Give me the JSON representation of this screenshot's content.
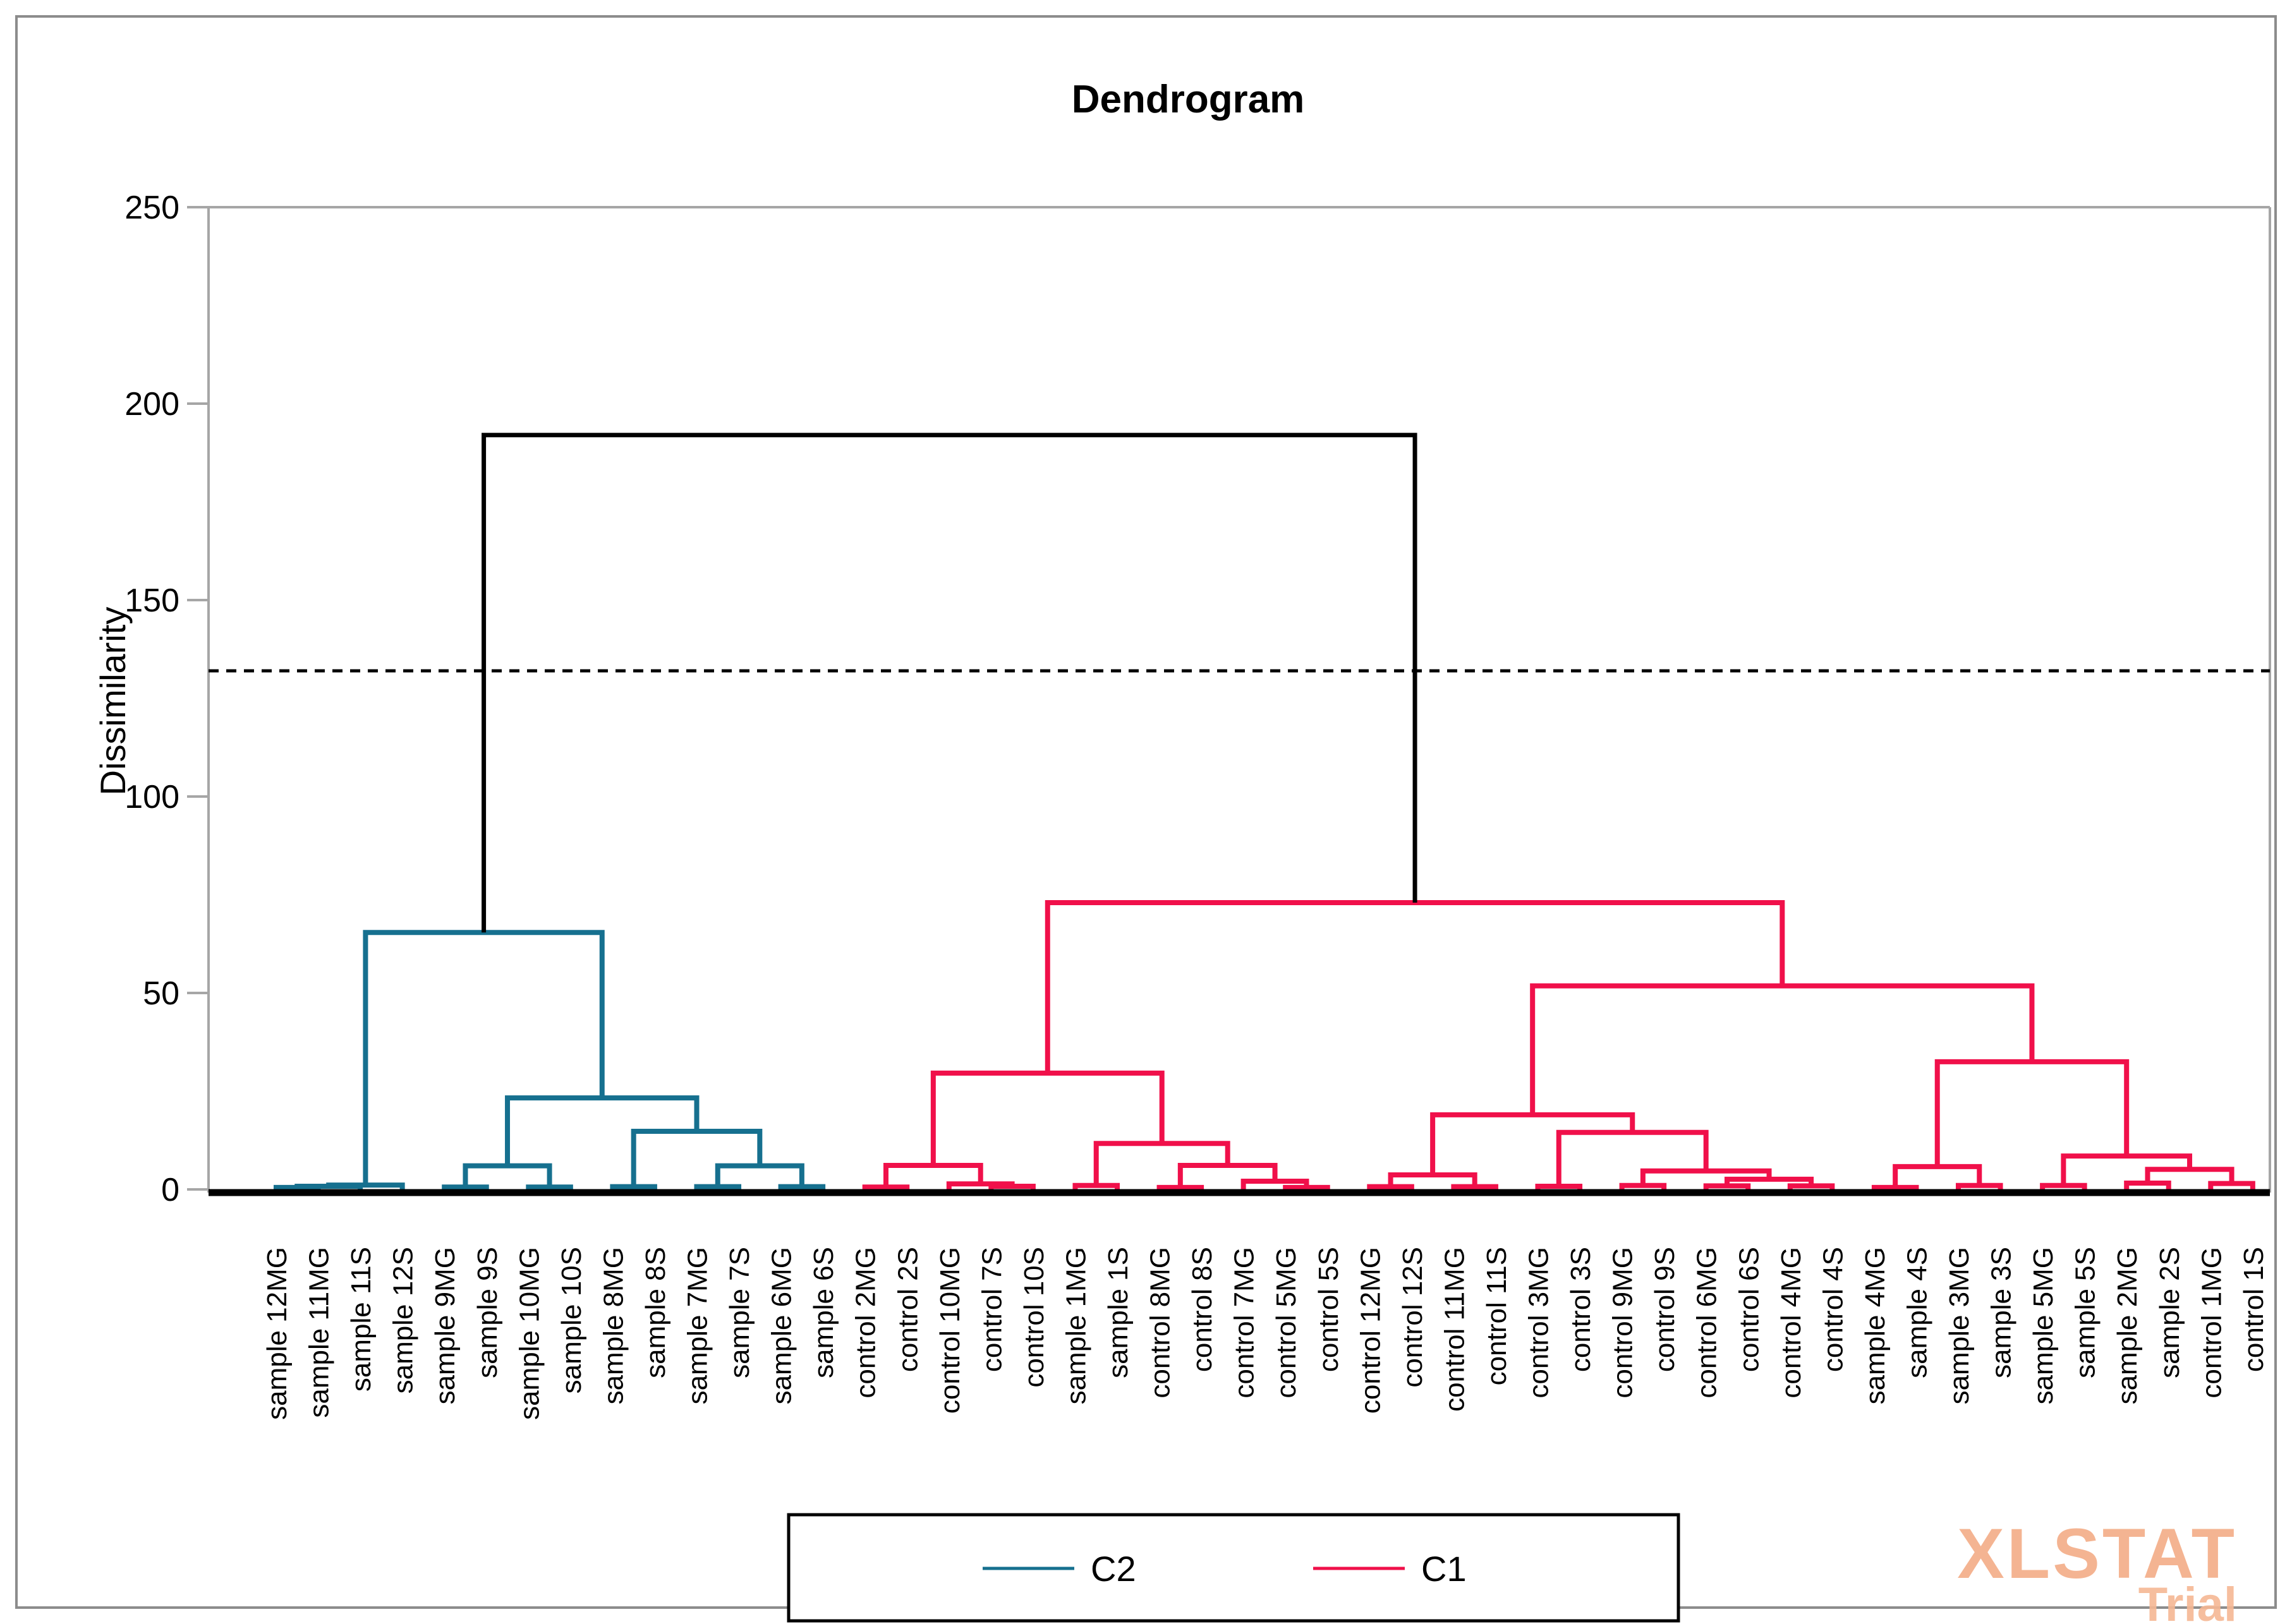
{
  "title": "Dendrogram",
  "y_axis": {
    "label": "Dissimilarity",
    "ticks": [
      0,
      50,
      100,
      150,
      200,
      250
    ]
  },
  "legend": {
    "items": [
      {
        "label": "C2",
        "color": "#16708F"
      },
      {
        "label": "C1",
        "color": "#F0104A"
      }
    ]
  },
  "watermark": {
    "brand": "XLSTAT",
    "trial": "Trial"
  },
  "chart_data": {
    "type": "dendrogram",
    "title": "Dendrogram",
    "ylabel": "Dissimilarity",
    "ylim": [
      0,
      250
    ],
    "grid": false,
    "cutoff_line": 132,
    "root_height": 192,
    "legend_position": "bottom-center",
    "clusters": [
      {
        "name": "C2",
        "color": "#16708F",
        "leaf_range": [
          1,
          14
        ]
      },
      {
        "name": "C1",
        "color": "#F0104A",
        "leaf_range": [
          15,
          48
        ]
      }
    ],
    "leaves": [
      "sample 12MG",
      "sample 11MG",
      "sample 11S",
      "sample 12S",
      "sample 9MG",
      "sample 9S",
      "sample 10MG",
      "sample 10S",
      "sample 8MG",
      "sample 8S",
      "sample 7MG",
      "sample 7S",
      "sample 6MG",
      "sample 6S",
      "control 2MG",
      "control 2S",
      "control 10MG",
      "control 7S",
      "control 10S",
      "sample 1MG",
      "sample 1S",
      "control 8MG",
      "control 8S",
      "control 7MG",
      "control 5MG",
      "control 5S",
      "control 12MG",
      "control 12S",
      "control 11MG",
      "control 11S",
      "control 3MG",
      "control 3S",
      "control 9MG",
      "control 9S",
      "control 6MG",
      "control 6S",
      "control 4MG",
      "control 4S",
      "sample 4MG",
      "sample 4S",
      "sample 3MG",
      "sample 3S",
      "sample 5MG",
      "sample 5S",
      "sample 2MG",
      "sample 2S",
      "control 1MG",
      "control 1S"
    ],
    "tree": [
      192,
      [
        65.4,
        [
          1.1,
          [
            0.8,
            [
              0.5,
              0,
              1
            ],
            2
          ],
          3
        ],
        [
          23.3,
          [
            6.0,
            [
              0.6,
              4,
              5
            ],
            [
              0.6,
              6,
              7
            ]
          ],
          [
            14.8,
            [
              0.7,
              8,
              9
            ],
            [
              6.0,
              [
                0.7,
                10,
                11
              ],
              [
                0.7,
                12,
                13
              ]
            ]
          ]
        ]
      ],
      [
        73.0,
        [
          29.6,
          [
            6.1,
            [
              0.6,
              14,
              15
            ],
            [
              1.4,
              16,
              [
                0.8,
                17,
                18
              ]
            ]
          ],
          [
            11.7,
            [
              1.0,
              19,
              20
            ],
            [
              6.1,
              [
                0.5,
                21,
                22
              ],
              [
                2.1,
                23,
                [
                  0.5,
                  24,
                  25
                ]
              ]
            ]
          ]
        ],
        [
          51.8,
          [
            19.0,
            [
              3.7,
              [
                0.7,
                26,
                27
              ],
              [
                0.7,
                28,
                29
              ]
            ],
            [
              14.5,
              [
                0.8,
                30,
                31
              ],
              [
                4.7,
                [
                  1.0,
                  32,
                  33
                ],
                [
                  2.6,
                  [
                    0.9,
                    34,
                    35
                  ],
                  [
                    0.9,
                    36,
                    37
                  ]
                ]
              ]
            ]
          ],
          [
            32.5,
            [
              5.8,
              [
                0.5,
                38,
                39
              ],
              [
                1.0,
                40,
                41
              ]
            ],
            [
              8.5,
              [
                1.0,
                42,
                43
              ],
              [
                5.1,
                [
                  1.6,
                  44,
                  45
                ],
                [
                  1.5,
                  46,
                  47
                ]
              ]
            ]
          ]
        ]
      ]
    ]
  }
}
